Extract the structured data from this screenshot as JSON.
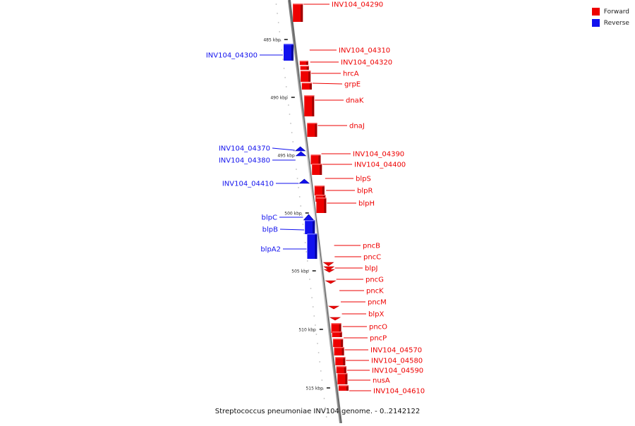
{
  "legend": {
    "forward_label": "Forward",
    "reverse_label": "Reverse",
    "forward_color": "#ee0000",
    "reverse_color": "#1111ee"
  },
  "caption": "Streptococcus pneumoniae INV104 genome. - 0..2142122",
  "backbone_ticks": [
    "485 kbp",
    "490 kbp",
    "495 kbp",
    "500 kbp",
    "505 kbp",
    "510 kbp",
    "515 kbp"
  ],
  "genes": [
    {
      "label": "INV104_04290",
      "strand": "forward",
      "shape": "block"
    },
    {
      "label": "INV104_04300",
      "strand": "reverse",
      "shape": "block"
    },
    {
      "label": "INV104_04310",
      "strand": "forward",
      "shape": "small"
    },
    {
      "label": "INV104_04320",
      "strand": "forward",
      "shape": "small"
    },
    {
      "label": "hrcA",
      "strand": "forward",
      "shape": "block"
    },
    {
      "label": "grpE",
      "strand": "forward",
      "shape": "block"
    },
    {
      "label": "dnaK",
      "strand": "forward",
      "shape": "block"
    },
    {
      "label": "dnaJ",
      "strand": "forward",
      "shape": "block"
    },
    {
      "label": "INV104_04370",
      "strand": "reverse",
      "shape": "arrow"
    },
    {
      "label": "INV104_04380",
      "strand": "reverse",
      "shape": "arrow"
    },
    {
      "label": "INV104_04390",
      "strand": "forward",
      "shape": "block"
    },
    {
      "label": "INV104_04400",
      "strand": "forward",
      "shape": "block"
    },
    {
      "label": "INV104_04410",
      "strand": "reverse",
      "shape": "arrow"
    },
    {
      "label": "blpS",
      "strand": "forward",
      "shape": "block"
    },
    {
      "label": "blpR",
      "strand": "forward",
      "shape": "block"
    },
    {
      "label": "blpH",
      "strand": "forward",
      "shape": "block"
    },
    {
      "label": "blpC",
      "strand": "reverse",
      "shape": "arrow"
    },
    {
      "label": "blpB",
      "strand": "reverse",
      "shape": "block"
    },
    {
      "label": "blpA2",
      "strand": "reverse",
      "shape": "block"
    },
    {
      "label": "pncB",
      "strand": "forward",
      "shape": "arrow"
    },
    {
      "label": "pncC",
      "strand": "forward",
      "shape": "arrow"
    },
    {
      "label": "blpJ",
      "strand": "forward",
      "shape": "arrow"
    },
    {
      "label": "pncG",
      "strand": "forward",
      "shape": "arrow"
    },
    {
      "label": "pncK",
      "strand": "forward",
      "shape": "arrow"
    },
    {
      "label": "pncM",
      "strand": "forward",
      "shape": "arrow"
    },
    {
      "label": "blpX",
      "strand": "forward",
      "shape": "block"
    },
    {
      "label": "pncO",
      "strand": "forward",
      "shape": "block"
    },
    {
      "label": "pncP",
      "strand": "forward",
      "shape": "block"
    },
    {
      "label": "INV104_04570",
      "strand": "forward",
      "shape": "block"
    },
    {
      "label": "INV104_04580",
      "strand": "forward",
      "shape": "block"
    },
    {
      "label": "INV104_04590",
      "strand": "forward",
      "shape": "block"
    },
    {
      "label": "nusA",
      "strand": "forward",
      "shape": "block"
    },
    {
      "label": "INV104_04610",
      "strand": "forward",
      "shape": "block"
    }
  ]
}
